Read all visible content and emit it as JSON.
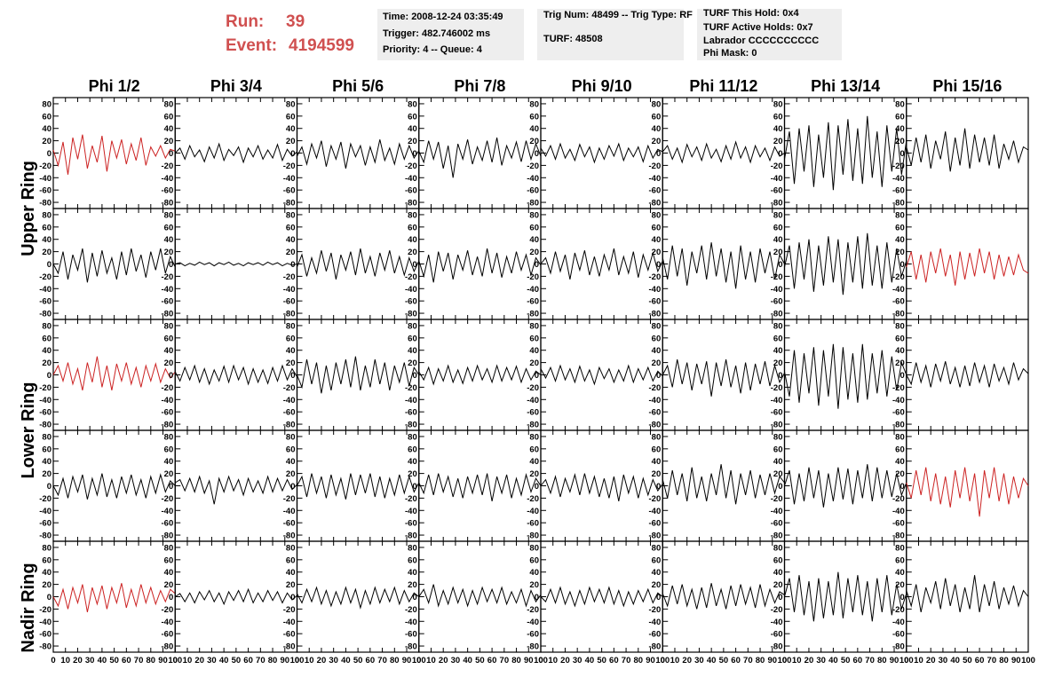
{
  "header": {
    "run_label": "Run:",
    "run": "39",
    "event_label": "Event:",
    "event": "4194599",
    "boxes": [
      [
        "Time: 2008-12-24 03:35:49",
        "Trigger: 482.746002 ms",
        "Priority: 4 -- Queue: 4"
      ],
      [
        "Trig Num: 48499 -- Trig Type: RF",
        "TURF: 48508"
      ],
      [
        "TURF This Hold: 0x4",
        "TURF Active Holds: 0x7",
        "Labrador CCCCCCCCCC",
        "Phi Mask: 0"
      ]
    ]
  },
  "chart_data": {
    "type": "line",
    "columns": [
      "Phi 1/2",
      "Phi 3/4",
      "Phi 5/6",
      "Phi 7/8",
      "Phi 9/10",
      "Phi 11/12",
      "Phi 13/14",
      "Phi 15/16"
    ],
    "ring_labels": [
      "Upper Ring",
      "Lower Ring",
      "Nadir Ring"
    ],
    "x": [
      0,
      4,
      8,
      12,
      16,
      20,
      24,
      28,
      32,
      36,
      40,
      44,
      48,
      52,
      56,
      60,
      64,
      68,
      72,
      76,
      80,
      84,
      88,
      92,
      96,
      100
    ],
    "xlim": [
      0,
      100
    ],
    "xticks": [
      0,
      10,
      20,
      30,
      40,
      50,
      60,
      70,
      80,
      90,
      100
    ],
    "ylim": [
      -90,
      90
    ],
    "yticks": [
      -80,
      -60,
      -40,
      -20,
      0,
      20,
      40,
      60,
      80
    ],
    "series": [
      {
        "color": "#cc2222",
        "values": [
          5,
          -20,
          18,
          -35,
          25,
          -10,
          30,
          -25,
          12,
          -15,
          28,
          -30,
          20,
          -8,
          22,
          -18,
          15,
          -12,
          25,
          -20,
          10,
          -5,
          12,
          -8,
          6,
          3
        ]
      },
      {
        "color": "#000000",
        "values": [
          0,
          8,
          -10,
          12,
          -6,
          5,
          -14,
          10,
          -8,
          15,
          -12,
          6,
          -4,
          10,
          -15,
          8,
          -6,
          12,
          -10,
          5,
          -8,
          14,
          -12,
          6,
          -5,
          2
        ]
      },
      {
        "color": "#000000",
        "values": [
          -5,
          10,
          -18,
          15,
          -8,
          20,
          -22,
          12,
          -10,
          18,
          -25,
          15,
          -6,
          12,
          -20,
          10,
          -15,
          22,
          -12,
          8,
          -18,
          15,
          -10,
          12,
          -8,
          4
        ]
      },
      {
        "color": "#000000",
        "values": [
          3,
          -15,
          20,
          -10,
          18,
          -25,
          12,
          -40,
          15,
          -10,
          22,
          -18,
          10,
          -12,
          20,
          -15,
          25,
          -20,
          12,
          -8,
          18,
          -14,
          20,
          -10,
          15,
          -5
        ]
      },
      {
        "color": "#000000",
        "values": [
          8,
          -5,
          12,
          -10,
          15,
          -8,
          6,
          -12,
          14,
          -6,
          10,
          -15,
          8,
          -10,
          12,
          -5,
          15,
          -12,
          8,
          -6,
          10,
          -14,
          12,
          -8,
          6,
          2
        ]
      },
      {
        "color": "#000000",
        "values": [
          2,
          12,
          -10,
          8,
          -15,
          14,
          -6,
          10,
          -12,
          15,
          -8,
          6,
          -14,
          12,
          -10,
          18,
          -8,
          10,
          -15,
          12,
          -6,
          8,
          -12,
          10,
          -5,
          0
        ]
      },
      {
        "color": "#000000",
        "values": [
          -10,
          35,
          -50,
          40,
          -30,
          45,
          -55,
          30,
          -40,
          50,
          -60,
          45,
          -35,
          55,
          -45,
          40,
          -50,
          60,
          -40,
          35,
          -55,
          45,
          -30,
          40,
          -35,
          20
        ]
      },
      {
        "color": "#000000",
        "values": [
          10,
          -20,
          25,
          -15,
          30,
          -25,
          20,
          -10,
          35,
          -30,
          25,
          -20,
          40,
          -25,
          30,
          -15,
          25,
          -20,
          30,
          -25,
          15,
          -10,
          20,
          -15,
          10,
          5
        ]
      },
      {
        "color": "#000000",
        "values": [
          0,
          -15,
          20,
          -25,
          15,
          -10,
          25,
          -30,
          18,
          -20,
          22,
          -15,
          10,
          -25,
          20,
          -18,
          25,
          -12,
          15,
          -22,
          20,
          -10,
          25,
          -15,
          12,
          -5
        ]
      },
      {
        "color": "#000000",
        "values": [
          0,
          2,
          -3,
          1,
          -2,
          3,
          -1,
          2,
          -3,
          2,
          -1,
          3,
          -2,
          1,
          -3,
          2,
          -1,
          2,
          -2,
          3,
          -1,
          2,
          -3,
          1,
          -2,
          0
        ]
      },
      {
        "color": "#000000",
        "values": [
          -5,
          15,
          -20,
          10,
          -15,
          22,
          -12,
          18,
          -25,
          15,
          -10,
          20,
          -18,
          25,
          -15,
          12,
          -20,
          18,
          -10,
          22,
          -15,
          12,
          -18,
          10,
          -12,
          5
        ]
      },
      {
        "color": "#000000",
        "values": [
          5,
          -20,
          15,
          -30,
          20,
          -12,
          18,
          -25,
          15,
          -10,
          22,
          -18,
          12,
          -20,
          25,
          -15,
          18,
          -22,
          12,
          -15,
          20,
          -10,
          15,
          -18,
          10,
          -2
        ]
      },
      {
        "color": "#000000",
        "values": [
          0,
          10,
          -15,
          20,
          -12,
          15,
          -25,
          18,
          -10,
          22,
          -18,
          12,
          -20,
          15,
          -10,
          25,
          -18,
          12,
          -15,
          20,
          -22,
          15,
          -10,
          18,
          -12,
          5
        ]
      },
      {
        "color": "#000000",
        "values": [
          10,
          -25,
          30,
          -20,
          25,
          -35,
          20,
          -15,
          30,
          -25,
          35,
          -20,
          25,
          -30,
          20,
          -40,
          30,
          -25,
          20,
          -30,
          25,
          -15,
          20,
          -25,
          15,
          0
        ]
      },
      {
        "color": "#000000",
        "values": [
          -5,
          30,
          -40,
          35,
          -25,
          40,
          -45,
          30,
          -35,
          45,
          -30,
          40,
          -50,
          35,
          -30,
          45,
          -40,
          50,
          -35,
          30,
          -40,
          35,
          -30,
          25,
          -20,
          5
        ]
      },
      {
        "color": "#cc2222",
        "values": [
          -5,
          20,
          -25,
          15,
          -30,
          20,
          -15,
          25,
          -20,
          15,
          -35,
          20,
          -25,
          18,
          -20,
          25,
          -15,
          20,
          -25,
          15,
          -20,
          12,
          -18,
          15,
          -10,
          -15
        ]
      },
      {
        "color": "#cc2222",
        "values": [
          0,
          15,
          -10,
          20,
          -15,
          10,
          -25,
          20,
          -12,
          30,
          -20,
          15,
          -25,
          18,
          -10,
          20,
          -15,
          12,
          -20,
          15,
          -10,
          18,
          -12,
          10,
          -5,
          5
        ]
      },
      {
        "color": "#000000",
        "values": [
          5,
          -10,
          12,
          -8,
          15,
          -12,
          10,
          -15,
          8,
          -10,
          14,
          -12,
          15,
          -8,
          12,
          -15,
          10,
          -12,
          8,
          -14,
          12,
          -10,
          15,
          -8,
          10,
          -3
        ]
      },
      {
        "color": "#000000",
        "values": [
          0,
          -20,
          25,
          -15,
          20,
          -30,
          15,
          -25,
          20,
          -15,
          25,
          -20,
          30,
          -25,
          15,
          -20,
          25,
          -15,
          20,
          -25,
          15,
          -12,
          20,
          -18,
          12,
          0
        ]
      },
      {
        "color": "#000000",
        "values": [
          5,
          -8,
          12,
          -15,
          10,
          -10,
          15,
          -12,
          8,
          -14,
          12,
          -10,
          15,
          -8,
          10,
          -12,
          15,
          -10,
          12,
          -8,
          14,
          -12,
          10,
          -8,
          6,
          0
        ]
      },
      {
        "color": "#000000",
        "values": [
          10,
          -5,
          12,
          -10,
          15,
          -8,
          10,
          -12,
          14,
          -10,
          8,
          -15,
          12,
          -6,
          10,
          -12,
          8,
          -10,
          15,
          -12,
          10,
          -8,
          12,
          -10,
          6,
          -2
        ]
      },
      {
        "color": "#000000",
        "values": [
          0,
          15,
          -20,
          25,
          -15,
          20,
          -25,
          18,
          -15,
          22,
          -35,
          20,
          -18,
          25,
          -20,
          15,
          -30,
          20,
          -25,
          18,
          -15,
          22,
          -18,
          15,
          -12,
          3
        ]
      },
      {
        "color": "#000000",
        "values": [
          5,
          -35,
          40,
          -45,
          35,
          -30,
          45,
          -50,
          40,
          -35,
          50,
          -55,
          45,
          -40,
          35,
          -45,
          50,
          -40,
          35,
          -30,
          40,
          -35,
          30,
          -25,
          20,
          0
        ]
      },
      {
        "color": "#000000",
        "values": [
          0,
          -15,
          20,
          -12,
          15,
          -20,
          18,
          -10,
          22,
          -15,
          12,
          -20,
          15,
          -18,
          20,
          -12,
          15,
          -20,
          18,
          -10,
          12,
          -15,
          20,
          -8,
          10,
          2
        ]
      },
      {
        "color": "#000000",
        "values": [
          0,
          -15,
          12,
          -20,
          15,
          -10,
          18,
          -22,
          12,
          -15,
          20,
          -18,
          10,
          -20,
          15,
          -12,
          18,
          -15,
          10,
          -20,
          15,
          -12,
          18,
          -10,
          8,
          0
        ]
      },
      {
        "color": "#000000",
        "values": [
          5,
          10,
          -8,
          12,
          -10,
          15,
          -12,
          8,
          -30,
          12,
          -10,
          15,
          -8,
          10,
          -15,
          12,
          -10,
          8,
          -12,
          15,
          -10,
          12,
          -8,
          10,
          -6,
          2
        ]
      },
      {
        "color": "#000000",
        "values": [
          0,
          15,
          -18,
          20,
          -12,
          15,
          -20,
          18,
          -15,
          12,
          -22,
          20,
          -15,
          18,
          -12,
          20,
          -18,
          15,
          -20,
          12,
          -15,
          18,
          -12,
          15,
          -10,
          5
        ]
      },
      {
        "color": "#000000",
        "values": [
          5,
          -12,
          18,
          -15,
          20,
          -10,
          15,
          -18,
          12,
          -20,
          15,
          -12,
          18,
          -15,
          20,
          -25,
          15,
          -12,
          18,
          -20,
          12,
          -15,
          18,
          -10,
          12,
          0
        ]
      },
      {
        "color": "#000000",
        "values": [
          0,
          10,
          -12,
          15,
          -18,
          12,
          -10,
          18,
          -15,
          20,
          -12,
          15,
          -18,
          12,
          -20,
          15,
          -25,
          18,
          -12,
          15,
          -20,
          12,
          -15,
          10,
          -8,
          3
        ]
      },
      {
        "color": "#000000",
        "values": [
          10,
          -20,
          25,
          -15,
          20,
          -25,
          30,
          -20,
          15,
          -25,
          20,
          -15,
          35,
          -20,
          25,
          -30,
          20,
          -15,
          25,
          -20,
          18,
          -15,
          20,
          -12,
          15,
          5
        ]
      },
      {
        "color": "#000000",
        "values": [
          0,
          25,
          -30,
          20,
          -25,
          30,
          -20,
          25,
          -35,
          20,
          -25,
          30,
          -22,
          28,
          -30,
          25,
          -20,
          35,
          -25,
          30,
          -20,
          25,
          -18,
          20,
          -15,
          5
        ]
      },
      {
        "color": "#cc2222",
        "values": [
          5,
          -20,
          25,
          -15,
          30,
          -25,
          20,
          -30,
          15,
          -35,
          25,
          -20,
          30,
          -25,
          20,
          -50,
          25,
          -20,
          30,
          -25,
          20,
          -30,
          15,
          -20,
          12,
          0
        ]
      },
      {
        "color": "#cc2222",
        "values": [
          0,
          -15,
          12,
          -20,
          15,
          -10,
          20,
          -25,
          15,
          -12,
          18,
          -20,
          15,
          -10,
          22,
          -18,
          12,
          -15,
          20,
          -10,
          15,
          -12,
          10,
          -8,
          12,
          5
        ]
      },
      {
        "color": "#000000",
        "values": [
          0,
          5,
          -8,
          6,
          -10,
          8,
          -5,
          10,
          -8,
          6,
          -12,
          8,
          -6,
          10,
          -8,
          12,
          -10,
          6,
          -8,
          10,
          -6,
          8,
          -10,
          6,
          -5,
          2
        ]
      },
      {
        "color": "#000000",
        "values": [
          5,
          -10,
          12,
          -8,
          15,
          -12,
          10,
          -15,
          8,
          -12,
          15,
          -10,
          12,
          -18,
          10,
          -12,
          15,
          -10,
          12,
          -8,
          15,
          -12,
          10,
          -8,
          6,
          0
        ]
      },
      {
        "color": "#000000",
        "values": [
          0,
          12,
          -10,
          20,
          -15,
          10,
          -12,
          15,
          -10,
          12,
          -15,
          10,
          -12,
          15,
          -8,
          12,
          -10,
          15,
          -12,
          8,
          -10,
          12,
          -15,
          10,
          -8,
          3
        ]
      },
      {
        "color": "#000000",
        "values": [
          0,
          -8,
          12,
          -10,
          15,
          -12,
          8,
          -15,
          10,
          -12,
          15,
          -8,
          12,
          -10,
          15,
          -12,
          10,
          -15,
          8,
          -12,
          10,
          -8,
          12,
          -10,
          6,
          0
        ]
      },
      {
        "color": "#000000",
        "values": [
          5,
          -15,
          18,
          -12,
          20,
          -15,
          12,
          -20,
          15,
          -18,
          22,
          -15,
          12,
          -20,
          18,
          -15,
          20,
          -12,
          15,
          -18,
          20,
          -15,
          12,
          -10,
          8,
          3
        ]
      },
      {
        "color": "#000000",
        "values": [
          0,
          30,
          -25,
          35,
          -30,
          25,
          -40,
          30,
          -35,
          25,
          -30,
          40,
          -35,
          30,
          -25,
          35,
          -30,
          25,
          -40,
          30,
          -25,
          35,
          -30,
          20,
          -20,
          5
        ]
      },
      {
        "color": "#000000",
        "values": [
          10,
          -15,
          20,
          -25,
          15,
          -10,
          25,
          -20,
          30,
          -15,
          20,
          -25,
          15,
          -20,
          35,
          -25,
          20,
          -15,
          25,
          -20,
          15,
          -12,
          18,
          -15,
          10,
          0
        ]
      }
    ]
  }
}
